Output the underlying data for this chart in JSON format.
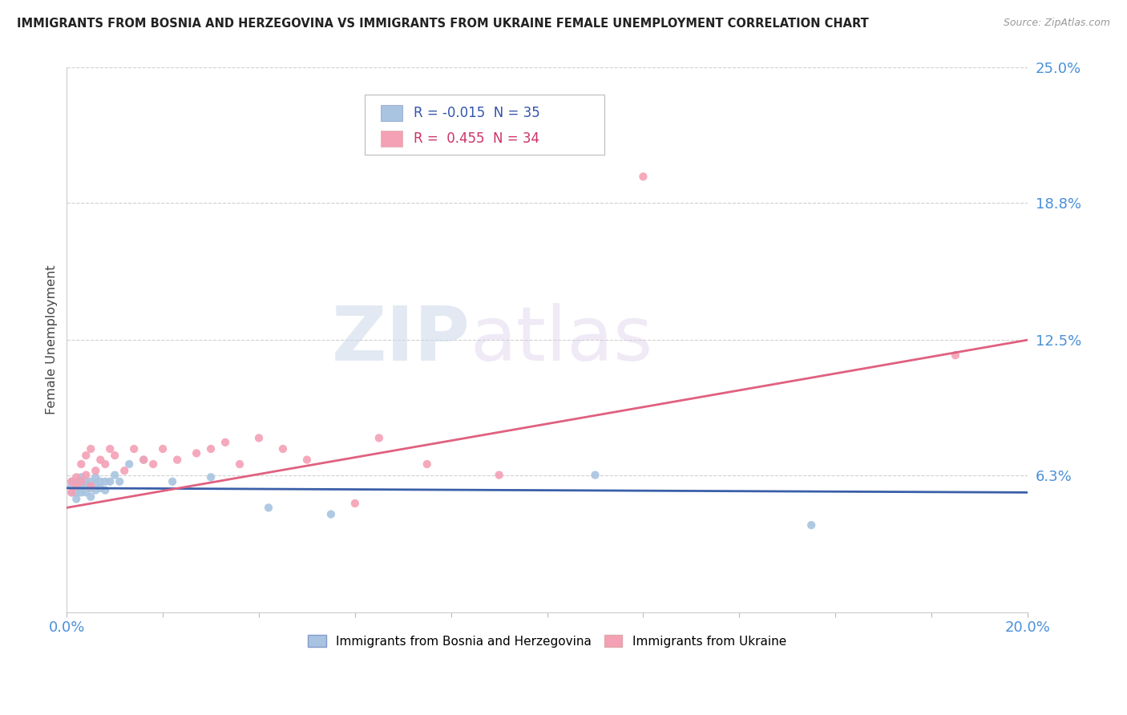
{
  "title": "IMMIGRANTS FROM BOSNIA AND HERZEGOVINA VS IMMIGRANTS FROM UKRAINE FEMALE UNEMPLOYMENT CORRELATION CHART",
  "source": "Source: ZipAtlas.com",
  "ylabel": "Female Unemployment",
  "xlim": [
    0.0,
    0.2
  ],
  "ylim": [
    0.0,
    0.25
  ],
  "yticks": [
    0.0,
    0.063,
    0.125,
    0.188,
    0.25
  ],
  "ytick_labels": [
    "",
    "6.3%",
    "12.5%",
    "18.8%",
    "25.0%"
  ],
  "series1_label": "Immigrants from Bosnia and Herzegovina",
  "series2_label": "Immigrants from Ukraine",
  "series1_color": "#a8c4e0",
  "series2_color": "#f4a0b5",
  "series1_line_color": "#3a5fa8",
  "series2_line_color": "#e06080",
  "R1": -0.015,
  "N1": 35,
  "R2": 0.455,
  "N2": 34,
  "watermark_zip": "ZIP",
  "watermark_atlas": "atlas",
  "background_color": "#ffffff",
  "series1_x": [
    0.001,
    0.001,
    0.001,
    0.002,
    0.002,
    0.002,
    0.002,
    0.003,
    0.003,
    0.003,
    0.003,
    0.004,
    0.004,
    0.004,
    0.005,
    0.005,
    0.005,
    0.006,
    0.006,
    0.006,
    0.007,
    0.007,
    0.008,
    0.008,
    0.009,
    0.01,
    0.011,
    0.013,
    0.016,
    0.022,
    0.03,
    0.042,
    0.055,
    0.11,
    0.155
  ],
  "series1_y": [
    0.055,
    0.058,
    0.06,
    0.052,
    0.055,
    0.058,
    0.06,
    0.055,
    0.057,
    0.06,
    0.062,
    0.055,
    0.058,
    0.06,
    0.053,
    0.057,
    0.06,
    0.056,
    0.059,
    0.062,
    0.057,
    0.06,
    0.056,
    0.06,
    0.06,
    0.063,
    0.06,
    0.068,
    0.07,
    0.06,
    0.062,
    0.048,
    0.045,
    0.063,
    0.04
  ],
  "series2_x": [
    0.001,
    0.001,
    0.002,
    0.002,
    0.003,
    0.003,
    0.004,
    0.004,
    0.005,
    0.005,
    0.006,
    0.007,
    0.008,
    0.009,
    0.01,
    0.012,
    0.014,
    0.016,
    0.018,
    0.02,
    0.023,
    0.027,
    0.03,
    0.033,
    0.036,
    0.04,
    0.045,
    0.05,
    0.06,
    0.065,
    0.075,
    0.09,
    0.12,
    0.185
  ],
  "series2_y": [
    0.055,
    0.06,
    0.058,
    0.062,
    0.06,
    0.068,
    0.063,
    0.072,
    0.058,
    0.075,
    0.065,
    0.07,
    0.068,
    0.075,
    0.072,
    0.065,
    0.075,
    0.07,
    0.068,
    0.075,
    0.07,
    0.073,
    0.075,
    0.078,
    0.068,
    0.08,
    0.075,
    0.07,
    0.05,
    0.08,
    0.068,
    0.063,
    0.2,
    0.118
  ],
  "trend1_x0": 0.0,
  "trend1_y0": 0.057,
  "trend1_x1": 0.2,
  "trend1_y1": 0.055,
  "trend2_x0": 0.0,
  "trend2_y0": 0.048,
  "trend2_x1": 0.2,
  "trend2_y1": 0.125
}
